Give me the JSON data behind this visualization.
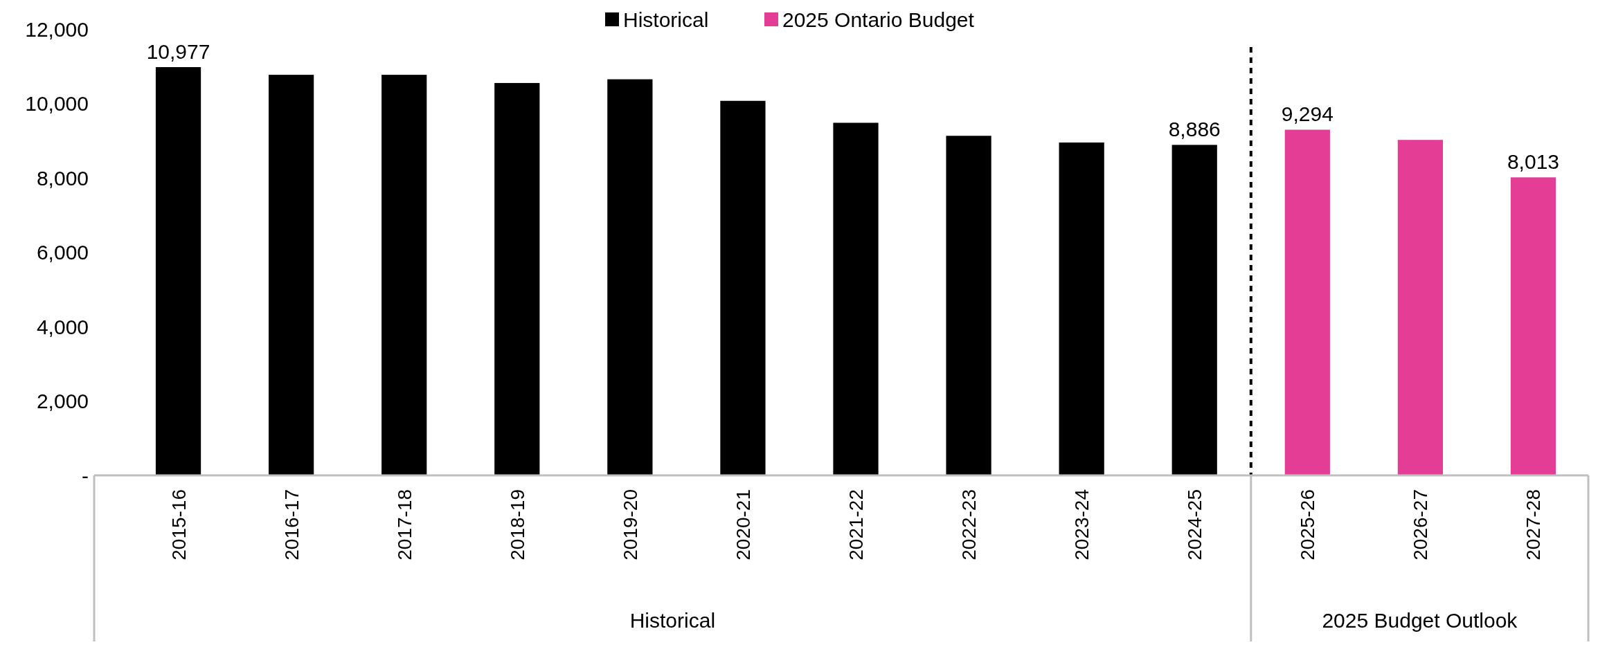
{
  "chart_data": {
    "type": "bar",
    "categories": [
      "2015-16",
      "2016-17",
      "2017-18",
      "2018-19",
      "2019-20",
      "2020-21",
      "2021-22",
      "2022-23",
      "2023-24",
      "2024-25",
      "2025-26",
      "2026-27",
      "2027-28"
    ],
    "series": [
      {
        "name": "Historical",
        "color": "#000000",
        "values": [
          10977,
          10770,
          10770,
          10550,
          10650,
          10070,
          9480,
          9130,
          8950,
          8886,
          null,
          null,
          null
        ],
        "value_labels": [
          "10,977",
          null,
          null,
          null,
          null,
          null,
          null,
          null,
          null,
          "8,886",
          null,
          null,
          null
        ]
      },
      {
        "name": "2025 Ontario Budget",
        "color": "#e43d96",
        "values": [
          null,
          null,
          null,
          null,
          null,
          null,
          null,
          null,
          null,
          null,
          9294,
          9020,
          8013
        ],
        "value_labels": [
          null,
          null,
          null,
          null,
          null,
          null,
          null,
          null,
          null,
          null,
          "9,294",
          null,
          "8,013"
        ]
      }
    ],
    "ylim": [
      0,
      12000
    ],
    "yticks": [
      {
        "value": 0,
        "label": "-"
      },
      {
        "value": 2000,
        "label": "2,000"
      },
      {
        "value": 4000,
        "label": "4,000"
      },
      {
        "value": 6000,
        "label": "6,000"
      },
      {
        "value": 8000,
        "label": "8,000"
      },
      {
        "value": 10000,
        "label": "10,000"
      },
      {
        "value": 12000,
        "label": "12,000"
      }
    ],
    "annotations": [
      "Historical",
      "2025 Budget Outlook"
    ],
    "legend": "top",
    "grid": false
  }
}
